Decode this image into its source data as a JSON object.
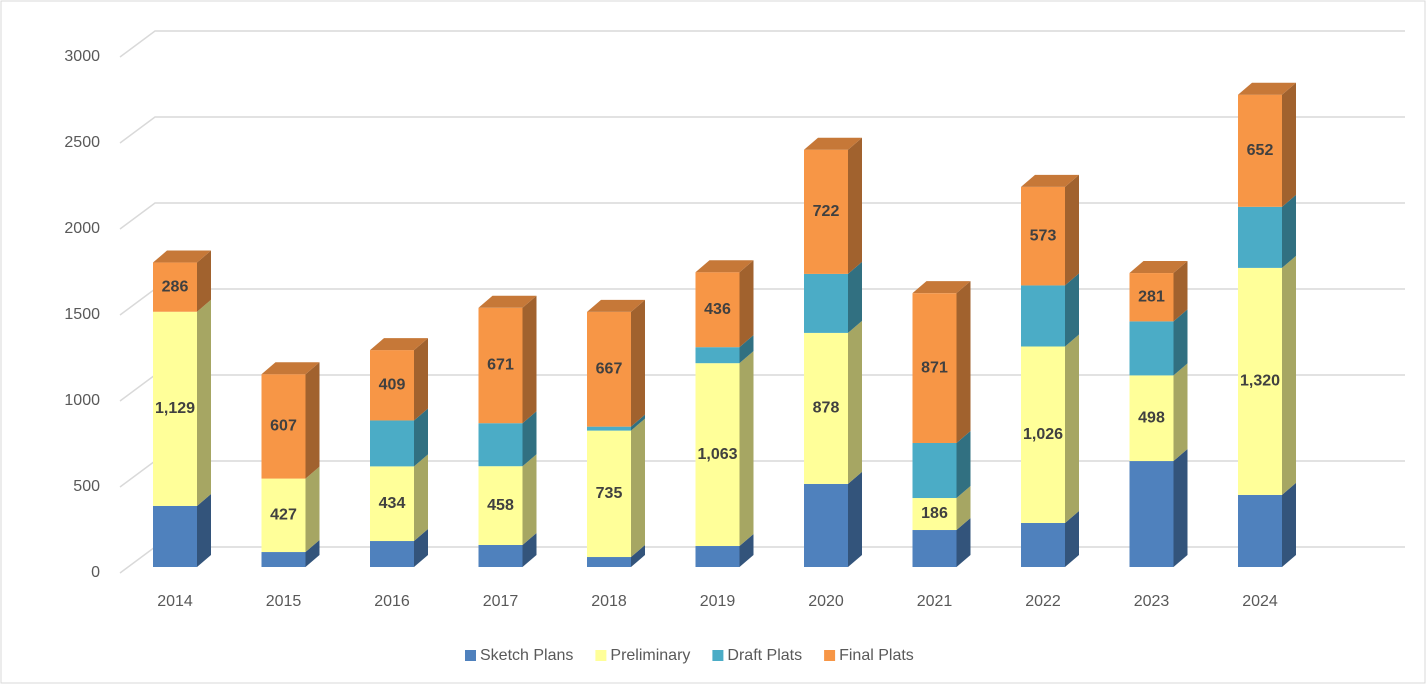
{
  "chart_data": {
    "type": "bar3d_stacked",
    "categories": [
      "2014",
      "2015",
      "2016",
      "2017",
      "2018",
      "2019",
      "2020",
      "2021",
      "2022",
      "2023",
      "2024"
    ],
    "series": [
      {
        "name": "Sketch Plans",
        "color": "#4f81bd",
        "values": [
          355,
          87,
          151,
          128,
          58,
          122,
          483,
          215,
          256,
          616,
          419
        ]
      },
      {
        "name": "Preliminary",
        "color": "#ffff99",
        "values": [
          1129,
          427,
          434,
          458,
          735,
          1063,
          878,
          186,
          1026,
          498,
          1320
        ],
        "value_labels": [
          "1,129",
          "427",
          "434",
          "458",
          "735",
          "1,063",
          "878",
          "186",
          "1,026",
          "498",
          "1,320"
        ]
      },
      {
        "name": "Draft Plats",
        "color": "#4bacc6",
        "values": [
          0,
          0,
          267,
          250,
          23,
          93,
          343,
          320,
          355,
          314,
          355
        ]
      },
      {
        "name": "Final Plats",
        "color": "#f79646",
        "values": [
          286,
          607,
          409,
          671,
          667,
          436,
          722,
          871,
          573,
          281,
          652
        ],
        "value_labels": [
          "286",
          "607",
          "409",
          "671",
          "667",
          "436",
          "722",
          "871",
          "573",
          "281",
          "652"
        ]
      }
    ],
    "ylim": [
      0,
      3000
    ],
    "yticks": [
      0,
      500,
      1000,
      1500,
      2000,
      2500,
      3000
    ],
    "grid": true,
    "legend": "bottom"
  }
}
